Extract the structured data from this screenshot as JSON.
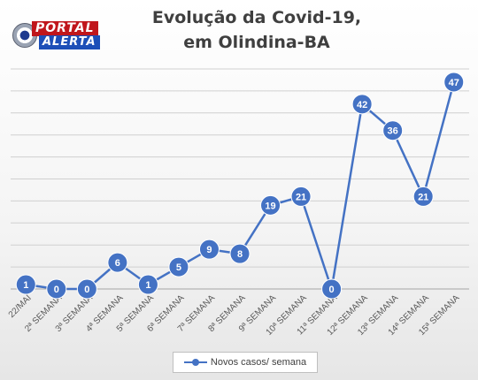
{
  "logo": {
    "brand_line1": "PORTAL",
    "brand_line2": "ALERTA"
  },
  "chart_data": {
    "type": "line",
    "title_line1": "Evolução da Covid-19,",
    "title_line2": "em Olindina-BA",
    "categories": [
      "22/MAI",
      "2ª SEMANA",
      "3ª SEMANA",
      "4ª SEMANA",
      "5ª SEMANA",
      "6ª SEMANA",
      "7ª SEMANA",
      "8ª SEMANA",
      "9ª SEMANA",
      "10ª SEMANA",
      "11ª SEMANA",
      "12ª SEMANA",
      "13ª SEMANA",
      "14ª SEMANA",
      "15ª SEMANA"
    ],
    "series": [
      {
        "name": "Novos casos/ semana",
        "values": [
          1,
          0,
          0,
          6,
          1,
          5,
          9,
          8,
          19,
          21,
          0,
          42,
          36,
          21,
          47
        ],
        "color": "#4472c4"
      }
    ],
    "ylim": [
      0,
      50
    ],
    "grid": true,
    "legend": "bottom",
    "data_labels": true
  }
}
